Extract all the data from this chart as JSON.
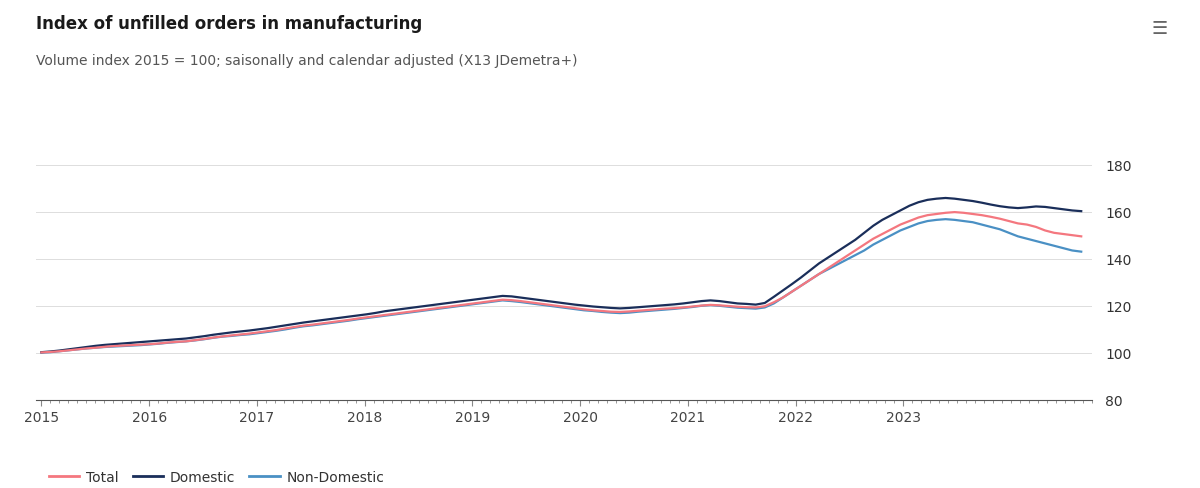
{
  "title": "Index of unfilled orders in manufacturing",
  "subtitle": "Volume index 2015 = 100; saisonally and calendar adjusted (X13 JDemetra+)",
  "ylim": [
    80,
    188
  ],
  "yticks": [
    80,
    100,
    120,
    140,
    160,
    180
  ],
  "background_color": "#ffffff",
  "colors": {
    "total": "#f4777f",
    "domestic": "#1a2e5a",
    "non_domestic": "#4a90c4"
  },
  "legend": [
    "Total",
    "Domestic",
    "Non-Domestic"
  ],
  "total": [
    100.2,
    100.4,
    100.7,
    101.1,
    101.5,
    101.9,
    102.2,
    102.6,
    102.9,
    103.1,
    103.3,
    103.5,
    103.7,
    104.0,
    104.4,
    104.7,
    104.9,
    105.4,
    105.9,
    106.5,
    107.0,
    107.4,
    107.8,
    108.2,
    108.7,
    109.2,
    109.7,
    110.4,
    111.0,
    111.6,
    112.0,
    112.5,
    113.0,
    113.5,
    114.0,
    114.6,
    115.1,
    115.6,
    116.1,
    116.6,
    117.1,
    117.6,
    118.1,
    118.6,
    119.1,
    119.6,
    120.1,
    120.6,
    121.1,
    121.6,
    122.1,
    122.6,
    122.4,
    122.0,
    121.5,
    121.0,
    120.5,
    120.0,
    119.5,
    119.0,
    118.5,
    118.1,
    117.8,
    117.5,
    117.4,
    117.6,
    117.9,
    118.2,
    118.5,
    118.8,
    119.0,
    119.3,
    119.7,
    120.1,
    120.4,
    120.2,
    119.9,
    119.6,
    119.4,
    119.3,
    119.8,
    121.5,
    123.5,
    126.0,
    128.5,
    131.0,
    133.5,
    136.0,
    138.5,
    141.0,
    143.5,
    146.0,
    148.5,
    150.5,
    152.5,
    154.5,
    156.0,
    157.5,
    158.5,
    159.0,
    159.5,
    159.8,
    159.5,
    159.0,
    158.5,
    157.8,
    157.0,
    156.0,
    155.0,
    154.5,
    153.5,
    152.0,
    151.0,
    150.5,
    150.0,
    149.5
  ],
  "domestic": [
    100.3,
    100.6,
    101.0,
    101.5,
    102.0,
    102.5,
    103.0,
    103.4,
    103.7,
    104.0,
    104.3,
    104.6,
    104.9,
    105.2,
    105.5,
    105.8,
    106.1,
    106.6,
    107.1,
    107.7,
    108.2,
    108.7,
    109.1,
    109.5,
    110.0,
    110.5,
    111.1,
    111.7,
    112.3,
    112.9,
    113.4,
    113.9,
    114.4,
    114.9,
    115.4,
    115.9,
    116.4,
    117.0,
    117.7,
    118.2,
    118.7,
    119.2,
    119.7,
    120.2,
    120.7,
    121.2,
    121.7,
    122.2,
    122.7,
    123.2,
    123.7,
    124.2,
    124.0,
    123.5,
    123.0,
    122.5,
    122.0,
    121.5,
    121.0,
    120.5,
    120.1,
    119.7,
    119.4,
    119.1,
    118.9,
    119.1,
    119.4,
    119.7,
    120.0,
    120.3,
    120.6,
    121.0,
    121.5,
    122.0,
    122.3,
    122.0,
    121.5,
    121.0,
    120.8,
    120.5,
    121.2,
    123.8,
    126.5,
    129.2,
    132.0,
    135.0,
    138.0,
    140.5,
    143.0,
    145.5,
    148.0,
    151.0,
    154.0,
    156.5,
    158.5,
    160.5,
    162.5,
    164.0,
    165.0,
    165.5,
    165.8,
    165.5,
    165.0,
    164.5,
    163.8,
    163.0,
    162.3,
    161.8,
    161.5,
    161.8,
    162.2,
    162.0,
    161.5,
    161.0,
    160.5,
    160.2
  ],
  "non_domestic": [
    100.1,
    100.3,
    100.7,
    101.1,
    101.5,
    101.9,
    102.2,
    102.5,
    102.7,
    102.9,
    103.1,
    103.3,
    103.6,
    103.9,
    104.3,
    104.6,
    104.9,
    105.3,
    105.8,
    106.4,
    106.9,
    107.2,
    107.6,
    107.9,
    108.4,
    108.9,
    109.4,
    110.0,
    110.7,
    111.3,
    111.7,
    112.2,
    112.7,
    113.2,
    113.7,
    114.3,
    114.8,
    115.3,
    115.8,
    116.3,
    116.8,
    117.3,
    117.8,
    118.3,
    118.8,
    119.3,
    119.8,
    120.3,
    120.8,
    121.3,
    121.8,
    122.3,
    122.0,
    121.6,
    121.1,
    120.6,
    120.1,
    119.6,
    119.1,
    118.6,
    118.1,
    117.8,
    117.4,
    117.1,
    116.9,
    117.1,
    117.5,
    117.8,
    118.1,
    118.4,
    118.7,
    119.1,
    119.5,
    120.0,
    120.3,
    120.0,
    119.6,
    119.2,
    119.0,
    118.8,
    119.3,
    121.0,
    123.5,
    126.0,
    128.5,
    131.0,
    133.5,
    135.5,
    137.5,
    139.5,
    141.5,
    143.5,
    146.0,
    148.0,
    150.0,
    152.0,
    153.5,
    155.0,
    156.0,
    156.5,
    156.8,
    156.5,
    156.0,
    155.5,
    154.5,
    153.5,
    152.5,
    151.0,
    149.5,
    148.5,
    147.5,
    146.5,
    145.5,
    144.5,
    143.5,
    143.0
  ],
  "n_points": 116,
  "start_year": 2015.0,
  "end_year": 2024.65
}
